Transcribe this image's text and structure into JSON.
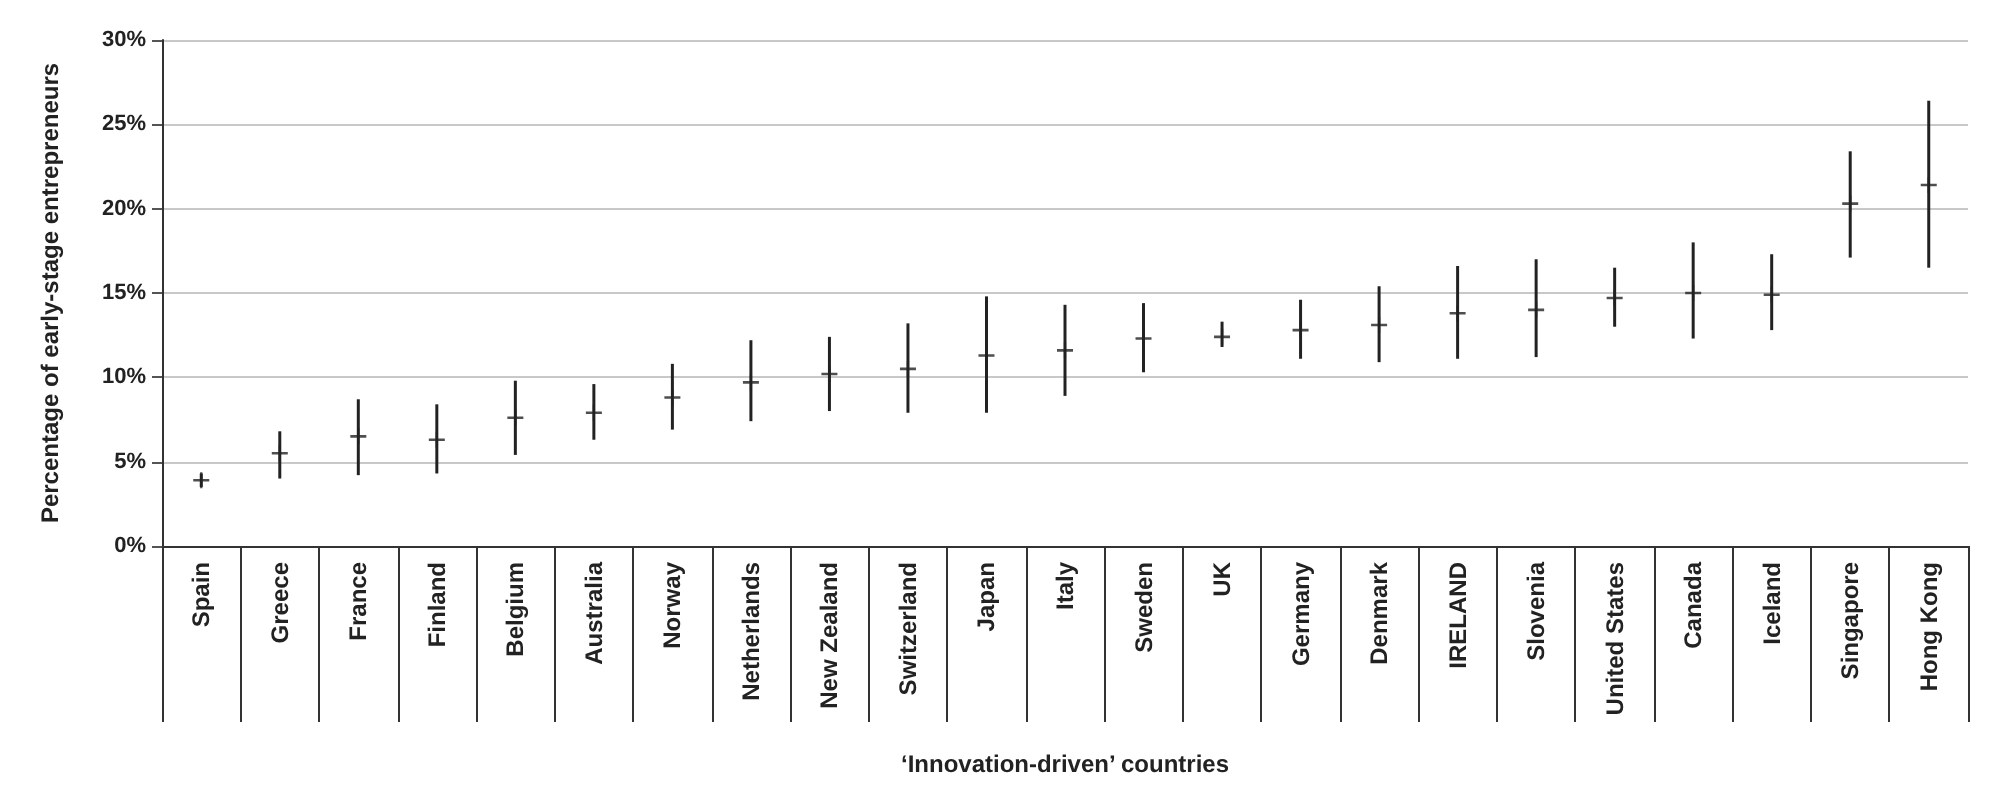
{
  "chart_data": {
    "type": "scatter",
    "xlabel": "‘Innovation-driven’ countries",
    "ylabel": "Percentage of early-stage entrepreneurs",
    "categories": [
      "Spain",
      "Greece",
      "France",
      "Finland",
      "Belgium",
      "Australia",
      "Norway",
      "Netherlands",
      "New Zealand",
      "Switzerland",
      "Japan",
      "Italy",
      "Sweden",
      "UK",
      "Germany",
      "Denmark",
      "IRELAND",
      "Slovenia",
      "United States",
      "Canada",
      "Iceland",
      "Singapore",
      "Hong Kong"
    ],
    "values": [
      3.9,
      5.5,
      6.5,
      6.3,
      7.6,
      7.9,
      8.8,
      9.7,
      10.2,
      10.5,
      11.3,
      11.6,
      12.3,
      12.4,
      12.8,
      13.1,
      13.8,
      14.0,
      14.7,
      15.0,
      14.9,
      20.3,
      21.4
    ],
    "errors": [
      [
        3.5,
        4.3
      ],
      [
        4.0,
        6.8
      ],
      [
        4.2,
        8.7
      ],
      [
        4.3,
        8.4
      ],
      [
        5.4,
        9.8
      ],
      [
        6.3,
        9.6
      ],
      [
        6.9,
        10.8
      ],
      [
        7.4,
        12.2
      ],
      [
        8.0,
        12.4
      ],
      [
        7.9,
        13.2
      ],
      [
        7.9,
        14.8
      ],
      [
        8.9,
        14.3
      ],
      [
        10.3,
        14.4
      ],
      [
        11.8,
        13.3
      ],
      [
        11.1,
        14.6
      ],
      [
        10.9,
        15.4
      ],
      [
        11.1,
        16.6
      ],
      [
        11.2,
        17.0
      ],
      [
        13.0,
        16.5
      ],
      [
        12.3,
        18.0
      ],
      [
        12.8,
        17.3
      ],
      [
        17.1,
        23.4
      ],
      [
        16.5,
        26.4
      ]
    ],
    "color": "#222222",
    "ylim": [
      0,
      30
    ],
    "yticks": [
      {
        "value": 0,
        "label": "0%"
      },
      {
        "value": 5,
        "label": "5%"
      },
      {
        "value": 10,
        "label": "10%"
      },
      {
        "value": 15,
        "label": "15%"
      },
      {
        "value": 20,
        "label": "20%"
      },
      {
        "value": 25,
        "label": "25%"
      },
      {
        "value": 30,
        "label": "30%"
      }
    ],
    "grid": "y",
    "marker": "cross"
  }
}
